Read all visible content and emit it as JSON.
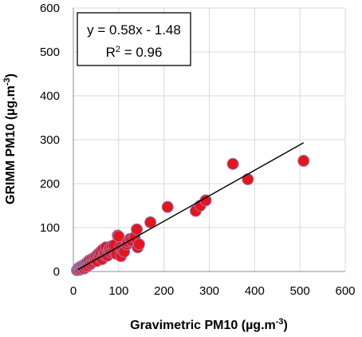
{
  "chart_data": {
    "type": "scatter",
    "title": "",
    "xlabel": "Gravimetric PM10 (µg.m",
    "xlabel_sup": "-3",
    "xlabel_close": ")",
    "ylabel": "GRIMM PM10 (µg.m",
    "ylabel_sup": "-3",
    "ylabel_close": ")",
    "xlim": [
      0,
      600
    ],
    "ylim": [
      0,
      600
    ],
    "xticks": [
      0,
      100,
      200,
      300,
      400,
      500,
      600
    ],
    "yticks": [
      0,
      100,
      200,
      300,
      400,
      500,
      600
    ],
    "grid": true,
    "point_color": "#e8141d",
    "point_edge_color": "#8b7fb8",
    "trendline_color": "#000000",
    "equation": "y = 0.58x - 1.48",
    "r2_label": "R",
    "r2_sup": "2",
    "r2_value": " = 0.96",
    "trendline": {
      "slope": 0.58,
      "intercept": -1.48,
      "x_range": [
        10,
        508
      ]
    },
    "series": [
      {
        "points": [
          [
            8,
            3
          ],
          [
            10,
            5
          ],
          [
            12,
            8
          ],
          [
            14,
            4
          ],
          [
            15,
            10
          ],
          [
            17,
            6
          ],
          [
            18,
            12
          ],
          [
            20,
            9
          ],
          [
            22,
            14
          ],
          [
            24,
            7
          ],
          [
            25,
            16
          ],
          [
            27,
            11
          ],
          [
            28,
            18
          ],
          [
            30,
            20
          ],
          [
            32,
            13
          ],
          [
            34,
            22
          ],
          [
            35,
            25
          ],
          [
            38,
            17
          ],
          [
            40,
            28
          ],
          [
            42,
            21
          ],
          [
            45,
            30
          ],
          [
            48,
            26
          ],
          [
            50,
            35
          ],
          [
            52,
            24
          ],
          [
            55,
            40
          ],
          [
            58,
            33
          ],
          [
            60,
            45
          ],
          [
            63,
            28
          ],
          [
            65,
            50
          ],
          [
            68,
            38
          ],
          [
            70,
            42
          ],
          [
            72,
            55
          ],
          [
            75,
            36
          ],
          [
            78,
            48
          ],
          [
            80,
            52
          ],
          [
            82,
            44
          ],
          [
            85,
            58
          ],
          [
            88,
            47
          ],
          [
            90,
            60
          ],
          [
            95,
            40
          ],
          [
            98,
            82
          ],
          [
            100,
            80
          ],
          [
            103,
            55
          ],
          [
            105,
            35
          ],
          [
            108,
            50
          ],
          [
            112,
            45
          ],
          [
            118,
            62
          ],
          [
            120,
            68
          ],
          [
            125,
            74
          ],
          [
            128,
            70
          ],
          [
            135,
            78
          ],
          [
            140,
            96
          ],
          [
            142,
            55
          ],
          [
            145,
            62
          ],
          [
            170,
            112
          ],
          [
            208,
            147
          ],
          [
            270,
            138
          ],
          [
            280,
            150
          ],
          [
            292,
            162
          ],
          [
            352,
            245
          ],
          [
            385,
            210
          ],
          [
            508,
            252
          ]
        ]
      }
    ]
  }
}
